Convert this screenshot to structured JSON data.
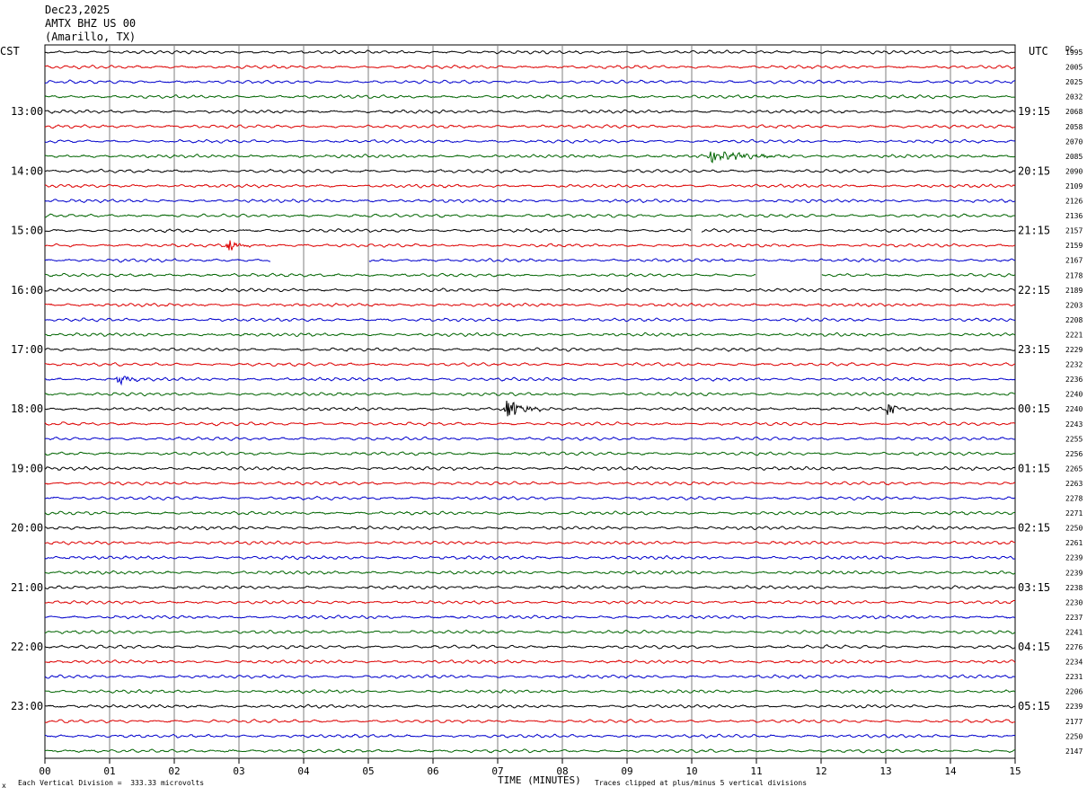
{
  "header": {
    "date": "Dec23,2025",
    "station": "AMTX BHZ US 00",
    "location": "(Amarillo, TX)"
  },
  "left_tz": "CST",
  "right_tz": "UTC",
  "right_col_label": "DC",
  "footer": {
    "scale_note": "Each Vertical Division =  333.33 microvolts",
    "corner_mark": "x",
    "clip_note": "Traces clipped at plus/minus 5 vertical divisions"
  },
  "colors": {
    "black": "#000000",
    "red": "#dd0000",
    "blue": "#0000cc",
    "green": "#006400",
    "grid": "#7f7f7f"
  },
  "chart_data": {
    "type": "line",
    "xlabel": "TIME (MINUTES)",
    "xlim": [
      0,
      15
    ],
    "x_ticks": [
      "00",
      "01",
      "02",
      "03",
      "04",
      "05",
      "06",
      "07",
      "08",
      "09",
      "10",
      "11",
      "12",
      "13",
      "14",
      "15"
    ],
    "trace_color_cycle": [
      "black",
      "red",
      "blue",
      "green"
    ],
    "left_hour_labels": [
      "13:00",
      "14:00",
      "15:00",
      "16:00",
      "17:00",
      "18:00",
      "19:00",
      "20:00",
      "21:00",
      "22:00",
      "23:00"
    ],
    "right_hour_labels": [
      "19:15",
      "20:15",
      "21:15",
      "22:15",
      "23:15",
      "00:15",
      "01:15",
      "02:15",
      "03:15",
      "04:15",
      "05:15"
    ],
    "dc_offsets": [
      "1995",
      "2005",
      "2025",
      "2032",
      "2068",
      "2058",
      "2070",
      "2085",
      "2090",
      "2109",
      "2126",
      "2136",
      "2157",
      "2159",
      "2167",
      "2178",
      "2189",
      "2203",
      "2208",
      "2221",
      "2229",
      "2232",
      "2236",
      "2240",
      "2240",
      "2243",
      "2255",
      "2256",
      "2265",
      "2263",
      "2278",
      "2271",
      "2250",
      "2261",
      "2239",
      "2239",
      "2238",
      "2230",
      "2237",
      "2241",
      "2276",
      "2234",
      "2231",
      "2206",
      "2239",
      "2177",
      "2250",
      "2147"
    ],
    "events": [
      {
        "trace": 13,
        "minute": 2.8,
        "duration_min": 0.4,
        "amplitude": "moderate"
      },
      {
        "trace": 14,
        "minute": 3.5,
        "duration_min": 1.5,
        "type": "gap"
      },
      {
        "trace": 12,
        "minute": 10.0,
        "duration_min": 0.15,
        "type": "gap"
      },
      {
        "trace": 15,
        "minute": 11.0,
        "duration_min": 1.0,
        "type": "gap"
      },
      {
        "trace": 7,
        "minute": 10.2,
        "duration_min": 1.7,
        "amplitude": "small"
      },
      {
        "trace": 22,
        "minute": 1.1,
        "duration_min": 0.5,
        "amplitude": "small"
      },
      {
        "trace": 24,
        "minute": 7.1,
        "duration_min": 0.6,
        "amplitude": "large"
      },
      {
        "trace": 24,
        "minute": 13.0,
        "duration_min": 0.35,
        "amplitude": "moderate"
      }
    ]
  }
}
